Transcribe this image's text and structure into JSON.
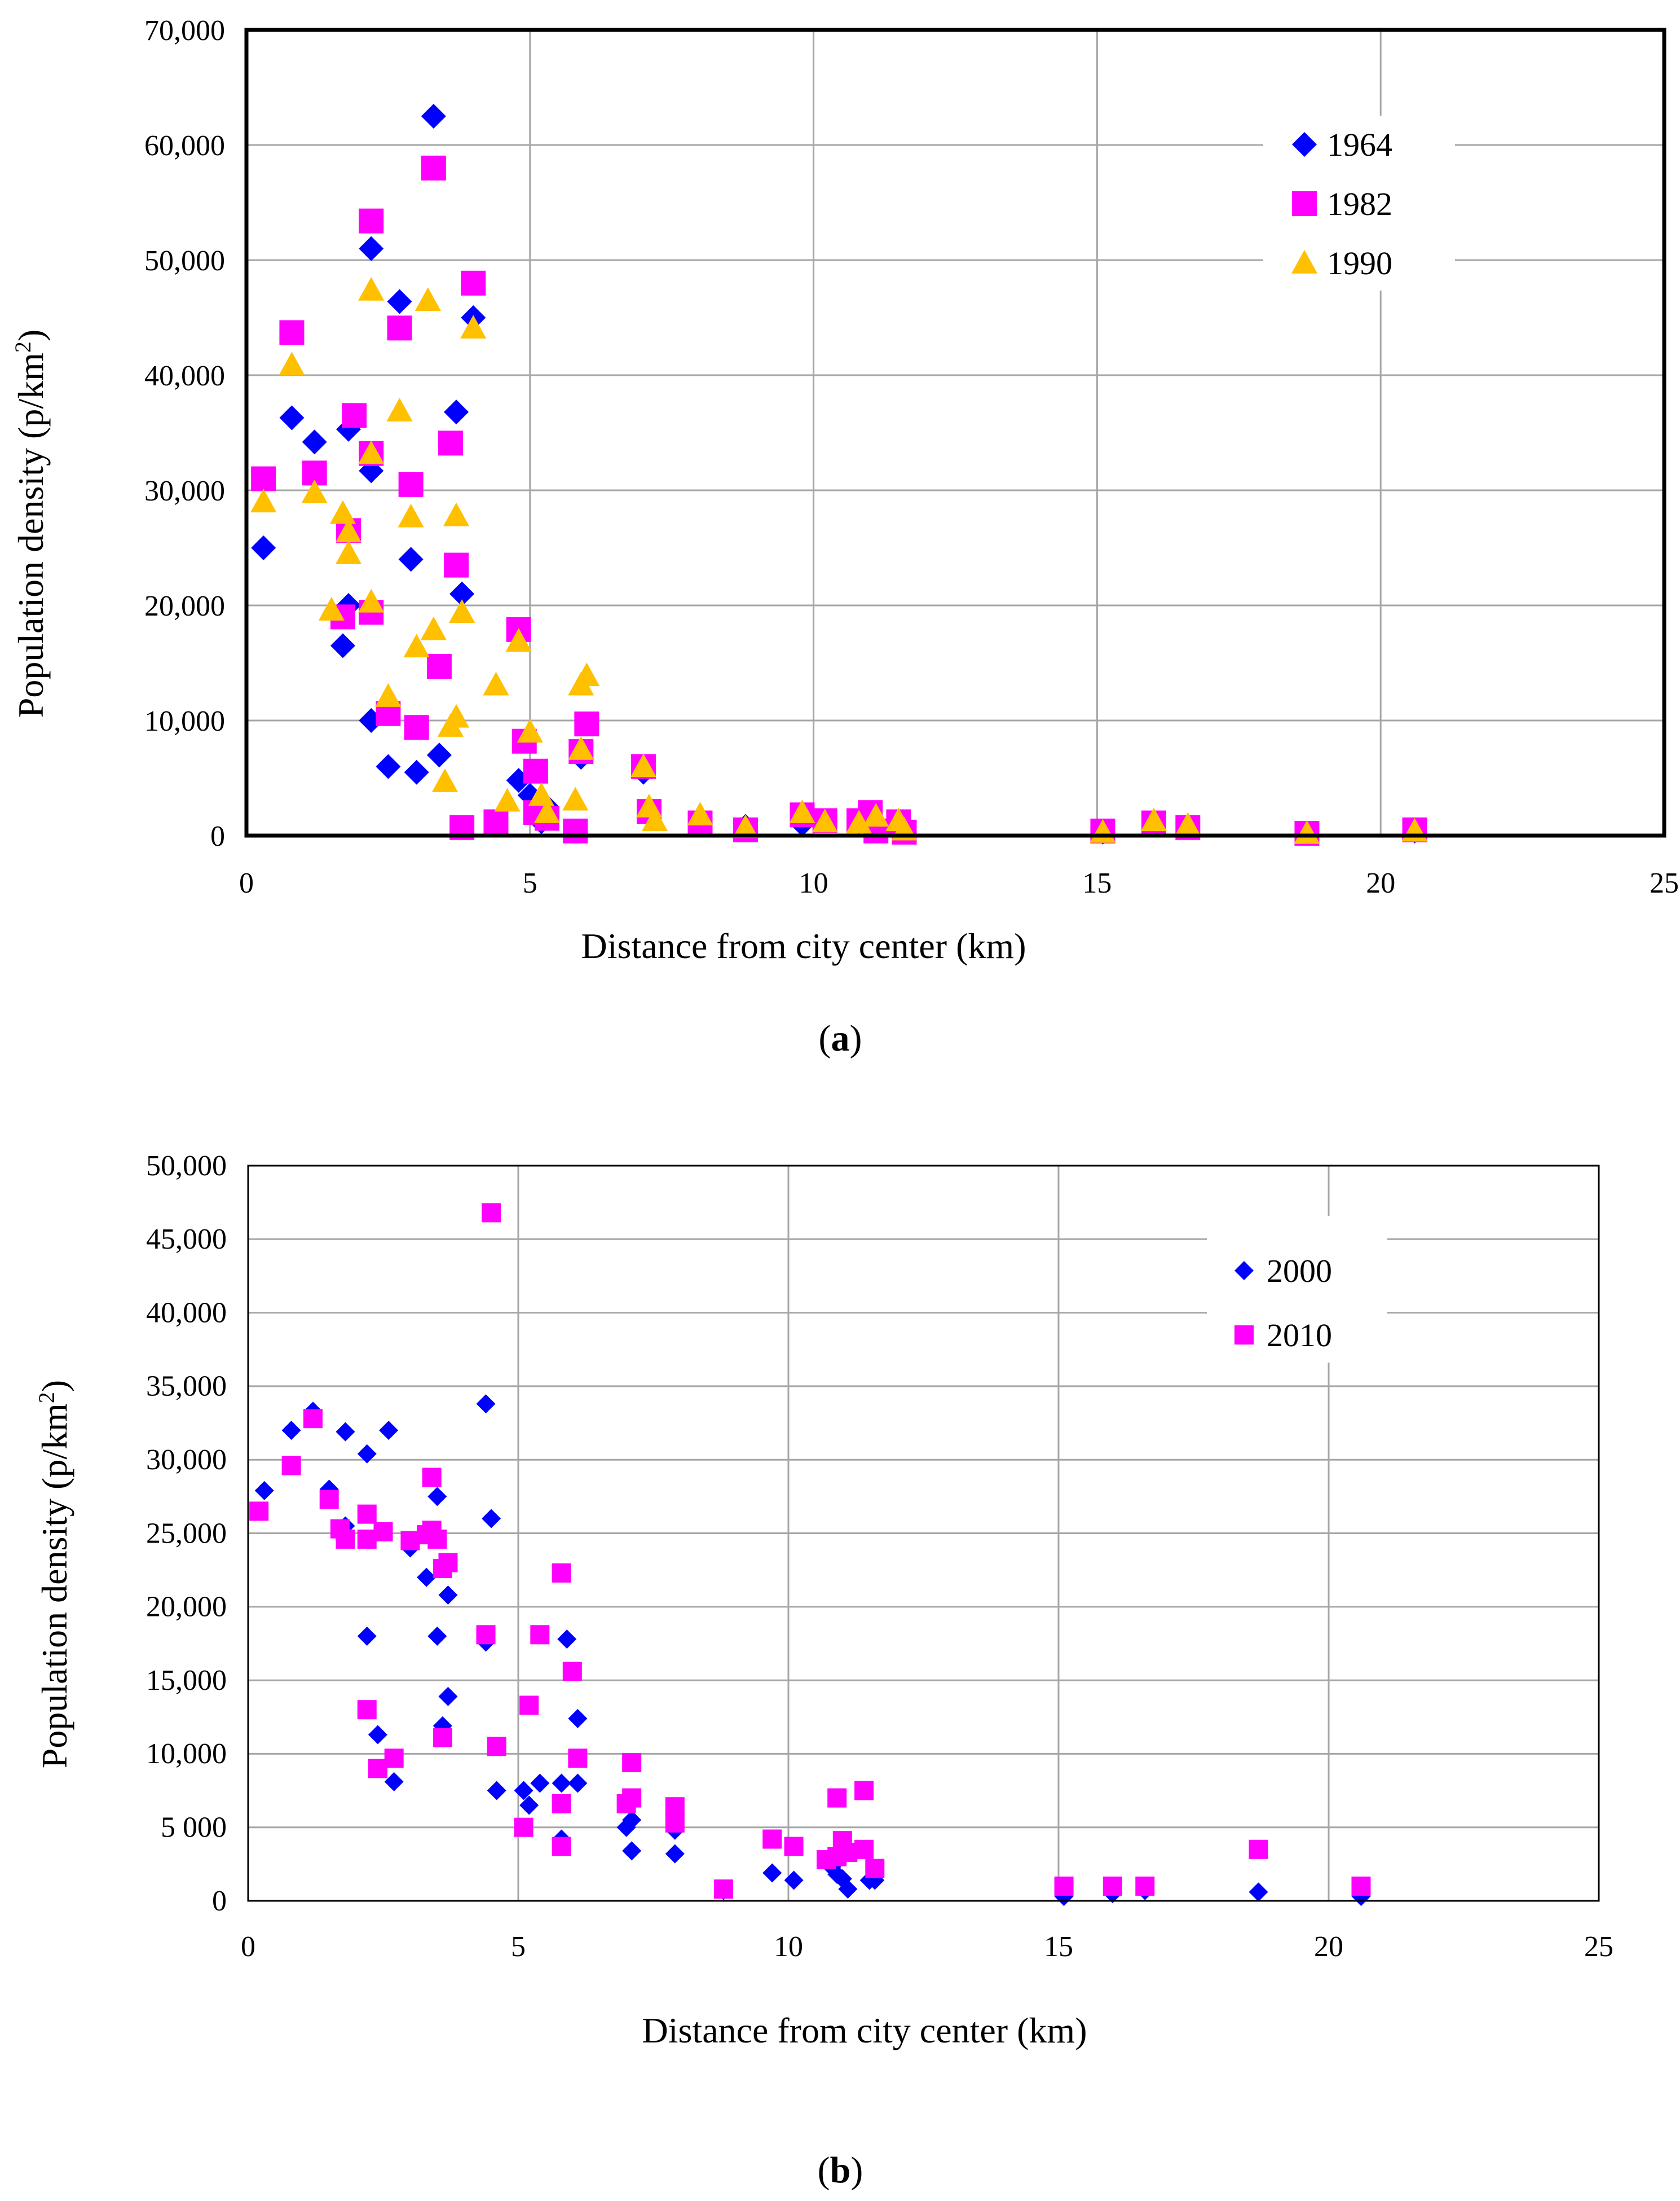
{
  "colors": {
    "s1964": "#0000FF",
    "s1982": "#FF00FF",
    "s1990": "#FFC000",
    "s2000": "#0000FF",
    "s2010": "#FF00FF",
    "grid": "#A6A6A6"
  },
  "chart_data": [
    {
      "type": "scatter",
      "title": "",
      "xlabel": "Distance from city center (km)",
      "ylabel_main": "Population density (p/km",
      "ylabel_sup": "2",
      "ylabel_close": ")",
      "xlim": [
        0,
        25
      ],
      "ylim": [
        0,
        70000
      ],
      "xticks": [
        0,
        5,
        10,
        15,
        20,
        25
      ],
      "xtick_labels": [
        "0",
        "5",
        "10",
        "15",
        "20",
        "25"
      ],
      "yticks": [
        0,
        10000,
        20000,
        30000,
        40000,
        50000,
        60000,
        70000
      ],
      "ytick_labels": [
        "0",
        "10,000",
        "20,000",
        "30,000",
        "40,000",
        "50,000",
        "60,000",
        "70,000"
      ],
      "grid": true,
      "legend_position": "top-right",
      "caption_open": "(",
      "caption_letter": "a",
      "caption_close": ")",
      "series": [
        {
          "name": "1964",
          "marker": "diamond",
          "color": "#0000FF",
          "points": [
            [
              0.3,
              25000
            ],
            [
              0.8,
              36300
            ],
            [
              1.2,
              34200
            ],
            [
              1.8,
              35300
            ],
            [
              1.8,
              20000
            ],
            [
              1.7,
              16500
            ],
            [
              2.2,
              51000
            ],
            [
              2.2,
              31700
            ],
            [
              2.2,
              10000
            ],
            [
              2.5,
              6000
            ],
            [
              2.7,
              46400
            ],
            [
              2.9,
              24000
            ],
            [
              3.0,
              5500
            ],
            [
              3.3,
              62500
            ],
            [
              3.4,
              7000
            ],
            [
              3.7,
              36800
            ],
            [
              3.8,
              21000
            ],
            [
              4.0,
              45000
            ],
            [
              4.8,
              4800
            ],
            [
              5.0,
              3500
            ],
            [
              5.2,
              1200
            ],
            [
              5.3,
              2500
            ],
            [
              5.8,
              400
            ],
            [
              5.9,
              6800
            ],
            [
              7.0,
              5500
            ],
            [
              7.1,
              2000
            ],
            [
              8.0,
              1200
            ],
            [
              8.8,
              800
            ],
            [
              9.8,
              1000
            ],
            [
              10.8,
              1200
            ],
            [
              11.1,
              400
            ],
            [
              11.5,
              300
            ],
            [
              15.1,
              300
            ],
            [
              16.0,
              1200
            ],
            [
              16.6,
              800
            ],
            [
              18.7,
              200
            ],
            [
              20.6,
              400
            ]
          ]
        },
        {
          "name": "1982",
          "marker": "square",
          "color": "#FF00FF",
          "points": [
            [
              0.3,
              31000
            ],
            [
              0.8,
              43700
            ],
            [
              1.2,
              31500
            ],
            [
              1.7,
              19000
            ],
            [
              1.8,
              26500
            ],
            [
              1.9,
              36500
            ],
            [
              2.2,
              53400
            ],
            [
              2.2,
              19400
            ],
            [
              2.2,
              33200
            ],
            [
              2.5,
              10600
            ],
            [
              2.7,
              44100
            ],
            [
              2.9,
              30500
            ],
            [
              3.0,
              9400
            ],
            [
              3.3,
              58000
            ],
            [
              3.4,
              14700
            ],
            [
              3.6,
              34100
            ],
            [
              3.7,
              23500
            ],
            [
              3.8,
              700
            ],
            [
              4.0,
              48000
            ],
            [
              4.4,
              1200
            ],
            [
              4.8,
              17900
            ],
            [
              4.9,
              8200
            ],
            [
              5.1,
              5600
            ],
            [
              5.1,
              2000
            ],
            [
              5.3,
              1500
            ],
            [
              5.8,
              400
            ],
            [
              5.9,
              7300
            ],
            [
              6.0,
              9700
            ],
            [
              7.0,
              6000
            ],
            [
              7.1,
              2100
            ],
            [
              8.0,
              1100
            ],
            [
              8.8,
              500
            ],
            [
              9.8,
              1800
            ],
            [
              10.2,
              1300
            ],
            [
              10.8,
              1300
            ],
            [
              11.0,
              2000
            ],
            [
              11.1,
              400
            ],
            [
              11.5,
              1200
            ],
            [
              11.6,
              300
            ],
            [
              15.1,
              400
            ],
            [
              16.0,
              1100
            ],
            [
              16.6,
              700
            ],
            [
              18.7,
              200
            ],
            [
              20.6,
              500
            ]
          ]
        },
        {
          "name": "1990",
          "marker": "triangle",
          "color": "#FFC000",
          "points": [
            [
              0.3,
              29000
            ],
            [
              0.8,
              40900
            ],
            [
              1.2,
              29800
            ],
            [
              1.5,
              19600
            ],
            [
              1.7,
              28000
            ],
            [
              1.8,
              24500
            ],
            [
              1.8,
              26400
            ],
            [
              2.2,
              47400
            ],
            [
              2.2,
              33200
            ],
            [
              2.2,
              20300
            ],
            [
              2.5,
              12100
            ],
            [
              2.7,
              36900
            ],
            [
              2.9,
              27700
            ],
            [
              3.0,
              16400
            ],
            [
              3.2,
              46500
            ],
            [
              3.3,
              17900
            ],
            [
              3.5,
              4700
            ],
            [
              3.6,
              9500
            ],
            [
              3.7,
              10300
            ],
            [
              3.7,
              27800
            ],
            [
              3.8,
              19400
            ],
            [
              4.0,
              44100
            ],
            [
              4.4,
              13100
            ],
            [
              4.6,
              3000
            ],
            [
              4.8,
              16900
            ],
            [
              5.0,
              9000
            ],
            [
              5.2,
              3500
            ],
            [
              5.3,
              2000
            ],
            [
              5.8,
              3100
            ],
            [
              5.9,
              7500
            ],
            [
              5.9,
              13100
            ],
            [
              6.0,
              13900
            ],
            [
              7.0,
              6000
            ],
            [
              7.1,
              2500
            ],
            [
              7.2,
              1300
            ],
            [
              8.0,
              1800
            ],
            [
              8.8,
              700
            ],
            [
              9.8,
              2000
            ],
            [
              10.2,
              1200
            ],
            [
              10.8,
              1100
            ],
            [
              11.1,
              1700
            ],
            [
              11.5,
              1300
            ],
            [
              11.6,
              500
            ],
            [
              15.1,
              300
            ],
            [
              16.0,
              1300
            ],
            [
              16.6,
              900
            ],
            [
              18.7,
              200
            ],
            [
              20.6,
              400
            ]
          ]
        }
      ]
    },
    {
      "type": "scatter",
      "title": "",
      "xlabel": "Distance from city center (km)",
      "ylabel_main": "Population density (p/km",
      "ylabel_sup": "2",
      "ylabel_close": ")",
      "xlim": [
        0,
        25
      ],
      "ylim": [
        0,
        50000
      ],
      "xticks": [
        0,
        5,
        10,
        15,
        20,
        25
      ],
      "xtick_labels": [
        "0",
        "5",
        "10",
        "15",
        "20",
        "25"
      ],
      "yticks": [
        0,
        5000,
        10000,
        15000,
        20000,
        25000,
        30000,
        35000,
        40000,
        45000,
        50000
      ],
      "ytick_labels": [
        "0",
        "5 000",
        "10,000",
        "15,000",
        "20,000",
        "25,000",
        "30,000",
        "35,000",
        "40,000",
        "45,000",
        "50,000"
      ],
      "grid": true,
      "legend_position": "top-right",
      "caption_open": "(",
      "caption_letter": "b",
      "caption_close": ")",
      "series": [
        {
          "name": "2000",
          "marker": "diamond",
          "color": "#0000FF",
          "points": [
            [
              0.3,
              27900
            ],
            [
              0.8,
              32000
            ],
            [
              1.2,
              33300
            ],
            [
              1.5,
              28000
            ],
            [
              1.8,
              25500
            ],
            [
              1.8,
              31900
            ],
            [
              2.2,
              18000
            ],
            [
              2.2,
              30400
            ],
            [
              2.4,
              11300
            ],
            [
              2.6,
              32000
            ],
            [
              2.7,
              8100
            ],
            [
              3.0,
              24000
            ],
            [
              3.3,
              22000
            ],
            [
              3.5,
              27500
            ],
            [
              3.5,
              18000
            ],
            [
              3.6,
              11900
            ],
            [
              3.7,
              13900
            ],
            [
              3.7,
              20800
            ],
            [
              4.4,
              33800
            ],
            [
              4.4,
              17600
            ],
            [
              4.5,
              26000
            ],
            [
              4.6,
              7500
            ],
            [
              5.1,
              7500
            ],
            [
              5.2,
              6500
            ],
            [
              5.4,
              8000
            ],
            [
              5.8,
              4200
            ],
            [
              5.8,
              8000
            ],
            [
              5.9,
              17800
            ],
            [
              6.1,
              8000
            ],
            [
              6.1,
              12400
            ],
            [
              7.0,
              5000
            ],
            [
              7.1,
              5500
            ],
            [
              7.1,
              3400
            ],
            [
              7.9,
              4800
            ],
            [
              7.9,
              3200
            ],
            [
              8.8,
              700
            ],
            [
              9.7,
              1900
            ],
            [
              10.1,
              1400
            ],
            [
              10.8,
              2300
            ],
            [
              10.9,
              1800
            ],
            [
              11.0,
              1500
            ],
            [
              11.1,
              800
            ],
            [
              11.5,
              1400
            ],
            [
              11.6,
              1400
            ],
            [
              15.1,
              300
            ],
            [
              16.0,
              500
            ],
            [
              16.6,
              700
            ],
            [
              18.7,
              600
            ],
            [
              20.6,
              300
            ]
          ]
        },
        {
          "name": "2010",
          "marker": "square",
          "color": "#FF00FF",
          "points": [
            [
              0.2,
              26500
            ],
            [
              0.8,
              29600
            ],
            [
              1.2,
              32800
            ],
            [
              1.5,
              27300
            ],
            [
              1.7,
              25300
            ],
            [
              1.8,
              24600
            ],
            [
              2.2,
              13000
            ],
            [
              2.2,
              26300
            ],
            [
              2.2,
              24600
            ],
            [
              2.4,
              9000
            ],
            [
              2.5,
              25100
            ],
            [
              2.7,
              9700
            ],
            [
              3.0,
              24500
            ],
            [
              3.3,
              24900
            ],
            [
              3.4,
              28800
            ],
            [
              3.4,
              25200
            ],
            [
              3.5,
              24600
            ],
            [
              3.6,
              11100
            ],
            [
              3.6,
              22600
            ],
            [
              3.7,
              23000
            ],
            [
              4.4,
              18100
            ],
            [
              4.5,
              46800
            ],
            [
              4.6,
              10500
            ],
            [
              5.1,
              5000
            ],
            [
              5.2,
              13300
            ],
            [
              5.4,
              18100
            ],
            [
              5.8,
              3700
            ],
            [
              5.8,
              6600
            ],
            [
              5.8,
              22300
            ],
            [
              6.0,
              15600
            ],
            [
              6.1,
              9700
            ],
            [
              7.0,
              6600
            ],
            [
              7.1,
              7000
            ],
            [
              7.1,
              9400
            ],
            [
              7.9,
              6400
            ],
            [
              7.9,
              5300
            ],
            [
              8.8,
              800
            ],
            [
              9.7,
              4200
            ],
            [
              10.1,
              3700
            ],
            [
              10.7,
              2800
            ],
            [
              10.9,
              3000
            ],
            [
              10.9,
              7000
            ],
            [
              11.0,
              4100
            ],
            [
              11.1,
              3300
            ],
            [
              11.4,
              3500
            ],
            [
              11.4,
              7500
            ],
            [
              11.6,
              2200
            ],
            [
              15.1,
              1000
            ],
            [
              16.0,
              1000
            ],
            [
              16.6,
              1000
            ],
            [
              18.7,
              3500
            ],
            [
              20.6,
              1000
            ]
          ]
        }
      ]
    }
  ]
}
